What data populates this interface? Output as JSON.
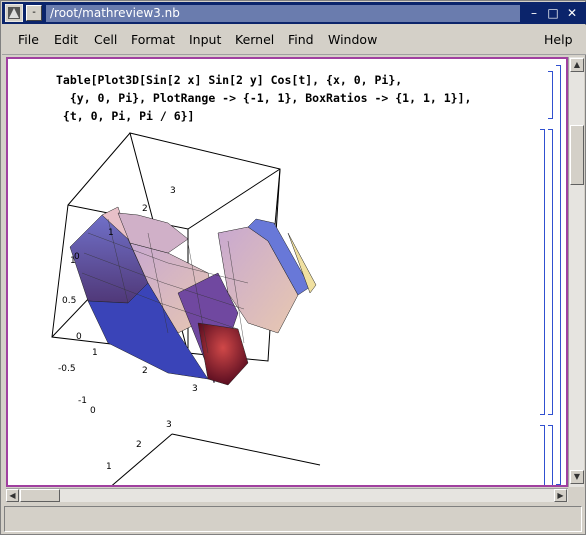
{
  "window": {
    "title": "/root/mathreview3.nb",
    "sys_button": "-",
    "minimize": "–",
    "maximize": "□",
    "close": "✕"
  },
  "menu": {
    "items": [
      "File",
      "Edit",
      "Cell",
      "Format",
      "Input",
      "Kernel",
      "Find",
      "Window",
      "Help"
    ]
  },
  "cell": {
    "input_lines": [
      "Table[Plot3D[Sin[2 x] Sin[2 y] Cos[t], {x, 0, Pi},",
      "  {y, 0, Pi}, PlotRange -> {-1, 1}, BoxRatios -> {1, 1, 1}],",
      " {t, 0, Pi, Pi / 6}]"
    ]
  },
  "plot1": {
    "z_ticks": [
      "1",
      "0.5",
      "0",
      "-0.5",
      "-1"
    ],
    "y_ticks_top": [
      "0",
      "1",
      "2",
      "3"
    ],
    "x_ticks_bottom": [
      "0",
      "1",
      "2",
      "3"
    ]
  },
  "plot2": {
    "top_ticks": [
      "3",
      "2",
      "1"
    ]
  },
  "colors": {
    "title_bg": "#0b246b",
    "notebook_frame": "#a040a0",
    "cell_bracket": "#3050d0"
  }
}
